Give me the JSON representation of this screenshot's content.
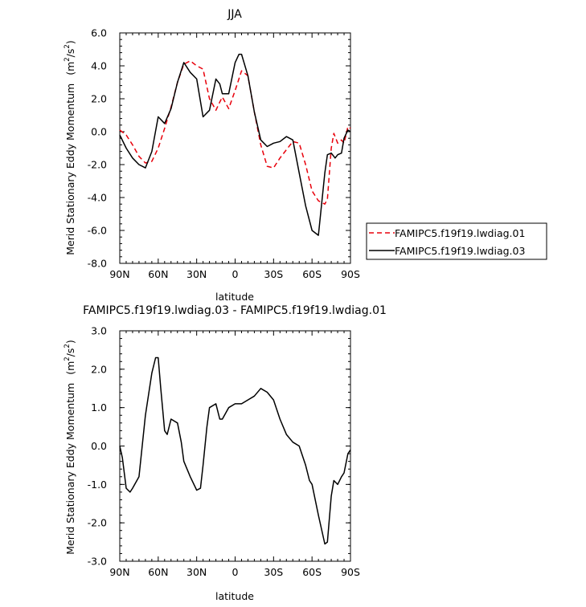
{
  "chart_data": [
    {
      "type": "line",
      "title": "JJA",
      "xlabel": "latitude",
      "ylabel_main": "Merid Stationary Eddy Momentum",
      "ylabel_unit": "(m",
      "ylabel_sup1": "2",
      "ylabel_slash": "/s",
      "ylabel_sup2": "2",
      "ylabel_close": ")",
      "xlim": [
        90,
        -90
      ],
      "ylim": [
        -8,
        6
      ],
      "x_ticks": [
        {
          "value": 90,
          "label": "90N"
        },
        {
          "value": 60,
          "label": "60N"
        },
        {
          "value": 30,
          "label": "30N"
        },
        {
          "value": 0,
          "label": "0"
        },
        {
          "value": -30,
          "label": "30S"
        },
        {
          "value": -60,
          "label": "60S"
        },
        {
          "value": -90,
          "label": "90S"
        }
      ],
      "y_ticks": [
        {
          "value": 6,
          "label": "6.0"
        },
        {
          "value": 4,
          "label": "4.0"
        },
        {
          "value": 2,
          "label": "2.0"
        },
        {
          "value": 0,
          "label": "0.0"
        },
        {
          "value": -2,
          "label": "-2.0"
        },
        {
          "value": -4,
          "label": "-4.0"
        },
        {
          "value": -6,
          "label": "-6.0"
        },
        {
          "value": -8,
          "label": "-8.0"
        }
      ],
      "legend_position": "right",
      "series": [
        {
          "name": "FAMIPC5.f19f19.lwdiag.01",
          "color": "#e8000b",
          "dash": "dashed",
          "x": [
            90,
            85,
            80,
            75,
            70,
            65,
            60,
            55,
            50,
            45,
            40,
            35,
            30,
            25,
            20,
            15,
            12,
            10,
            5,
            0,
            -5,
            -10,
            -15,
            -20,
            -25,
            -30,
            -35,
            -40,
            -45,
            -50,
            -55,
            -60,
            -65,
            -70,
            -72,
            -75,
            -77,
            -80,
            -83,
            -85,
            -88,
            -90
          ],
          "y": [
            0.1,
            -0.2,
            -0.8,
            -1.5,
            -1.9,
            -1.8,
            -1.0,
            0.2,
            1.5,
            3.0,
            4.1,
            4.3,
            4.0,
            3.8,
            2.0,
            1.3,
            1.8,
            2.1,
            1.4,
            2.5,
            3.7,
            3.4,
            1.2,
            -0.8,
            -2.1,
            -2.2,
            -1.6,
            -1.1,
            -0.6,
            -0.7,
            -2.0,
            -3.6,
            -4.2,
            -4.4,
            -4.1,
            -1.0,
            -0.1,
            -0.7,
            -0.5,
            -0.7,
            0.3,
            0.2
          ]
        },
        {
          "name": "FAMIPC5.f19f19.lwdiag.03",
          "color": "#000000",
          "dash": "solid",
          "x": [
            90,
            85,
            80,
            75,
            70,
            65,
            60,
            55,
            50,
            45,
            40,
            35,
            30,
            25,
            20,
            15,
            12,
            10,
            5,
            0,
            -3,
            -5,
            -10,
            -15,
            -20,
            -25,
            -30,
            -35,
            -40,
            -45,
            -50,
            -55,
            -60,
            -65,
            -70,
            -72,
            -75,
            -78,
            -80,
            -83,
            -85,
            -88,
            -90
          ],
          "y": [
            -0.2,
            -1.0,
            -1.6,
            -2.0,
            -2.2,
            -1.2,
            0.9,
            0.5,
            1.4,
            3.0,
            4.2,
            3.6,
            3.2,
            0.9,
            1.3,
            3.2,
            2.9,
            2.3,
            2.3,
            4.2,
            4.7,
            4.7,
            3.4,
            1.2,
            -0.5,
            -0.9,
            -0.7,
            -0.6,
            -0.3,
            -0.5,
            -2.5,
            -4.5,
            -6.0,
            -6.3,
            -2.5,
            -1.4,
            -1.3,
            -1.6,
            -1.4,
            -1.3,
            -0.4,
            0.1,
            0.0
          ]
        }
      ]
    },
    {
      "type": "line",
      "title": "FAMIPC5.f19f19.lwdiag.03 - FAMIPC5.f19f19.lwdiag.01",
      "xlabel": "latitude",
      "ylabel_main": "Merid Stationary Eddy Momentum",
      "ylabel_unit": "(m",
      "ylabel_sup1": "2",
      "ylabel_slash": "/s",
      "ylabel_sup2": "2",
      "ylabel_close": ")",
      "xlim": [
        90,
        -90
      ],
      "ylim": [
        -3,
        3
      ],
      "x_ticks": [
        {
          "value": 90,
          "label": "90N"
        },
        {
          "value": 60,
          "label": "60N"
        },
        {
          "value": 30,
          "label": "30N"
        },
        {
          "value": 0,
          "label": "0"
        },
        {
          "value": -30,
          "label": "30S"
        },
        {
          "value": -60,
          "label": "60S"
        },
        {
          "value": -90,
          "label": "90S"
        }
      ],
      "y_ticks": [
        {
          "value": 3,
          "label": "3.0"
        },
        {
          "value": 2,
          "label": "2.0"
        },
        {
          "value": 1,
          "label": "1.0"
        },
        {
          "value": 0,
          "label": "0.0"
        },
        {
          "value": -1,
          "label": "-1.0"
        },
        {
          "value": -2,
          "label": "-2.0"
        },
        {
          "value": -3,
          "label": "-3.0"
        }
      ],
      "series": [
        {
          "color": "#000000",
          "dash": "solid",
          "x": [
            90,
            88,
            85,
            82,
            80,
            75,
            70,
            65,
            62,
            60,
            58,
            55,
            53,
            50,
            45,
            42,
            40,
            35,
            30,
            27,
            25,
            22,
            20,
            15,
            12,
            10,
            5,
            0,
            -5,
            -10,
            -15,
            -20,
            -25,
            -30,
            -35,
            -40,
            -45,
            -50,
            -55,
            -58,
            -60,
            -65,
            -70,
            -72,
            -75,
            -77,
            -80,
            -83,
            -85,
            -88,
            -90
          ],
          "y": [
            0.0,
            -0.3,
            -1.1,
            -1.2,
            -1.1,
            -0.8,
            0.8,
            1.9,
            2.3,
            2.3,
            1.5,
            0.4,
            0.3,
            0.7,
            0.6,
            0.1,
            -0.4,
            -0.8,
            -1.15,
            -1.1,
            -0.5,
            0.5,
            1.0,
            1.1,
            0.7,
            0.7,
            1.0,
            1.1,
            1.1,
            1.2,
            1.3,
            1.5,
            1.4,
            1.2,
            0.7,
            0.3,
            0.1,
            0.0,
            -0.5,
            -0.9,
            -1.0,
            -1.8,
            -2.55,
            -2.5,
            -1.3,
            -0.9,
            -1.0,
            -0.8,
            -0.7,
            -0.2,
            -0.1
          ]
        }
      ]
    }
  ]
}
